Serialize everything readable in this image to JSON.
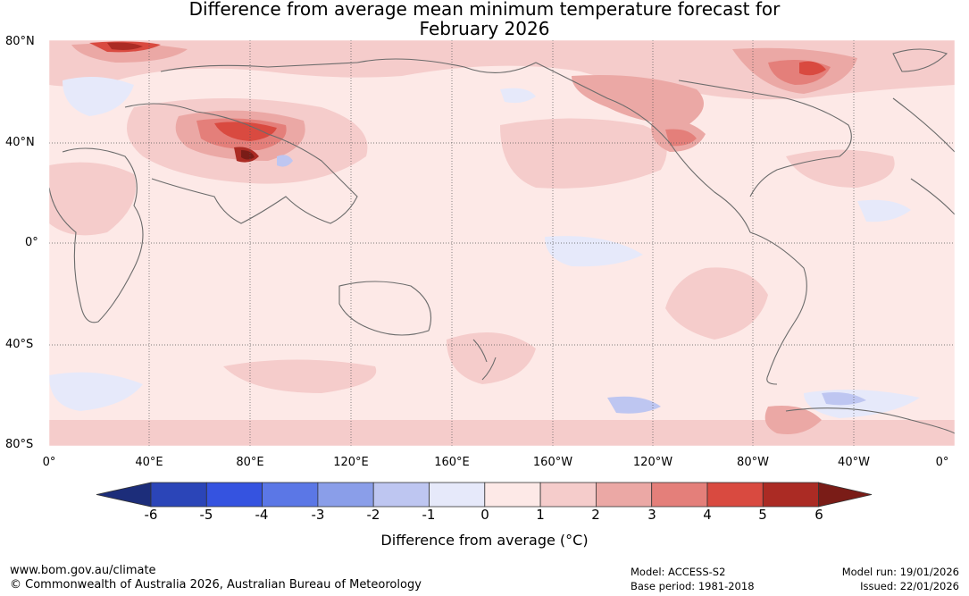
{
  "title": {
    "line1": "Difference from average mean minimum temperature forecast for",
    "line2": "February 2026"
  },
  "map": {
    "lat_labels": [
      "80°N",
      "40°N",
      "0°",
      "40°S",
      "80°S"
    ],
    "lon_labels": [
      "0°",
      "40°E",
      "80°E",
      "120°E",
      "160°E",
      "160°W",
      "120°W",
      "80°W",
      "40°W",
      "0°"
    ],
    "ocean_color": "#fde9e7"
  },
  "legend": {
    "label": "Difference from average (°C)",
    "ticks": [
      "-6",
      "-5",
      "-4",
      "-3",
      "-2",
      "-1",
      "0",
      "1",
      "2",
      "3",
      "4",
      "5",
      "6"
    ],
    "colors": [
      "#1c2d7a",
      "#2b45b8",
      "#3553e0",
      "#5b77e6",
      "#8a9ee9",
      "#bec6f1",
      "#e6e9fa",
      "#fde9e7",
      "#f5cccb",
      "#eba8a5",
      "#e47f7a",
      "#d94a40",
      "#ab2b24",
      "#7a1c17"
    ]
  },
  "footer": {
    "website": "www.bom.gov.au/climate",
    "copyright": "© Commonwealth of Australia 2026, Australian Bureau of Meteorology",
    "model": "Model: ACCESS-S2",
    "base_period": "Base period: 1981-2018",
    "model_run": "Model run: 19/01/2026",
    "issued": "Issued: 22/01/2026"
  }
}
